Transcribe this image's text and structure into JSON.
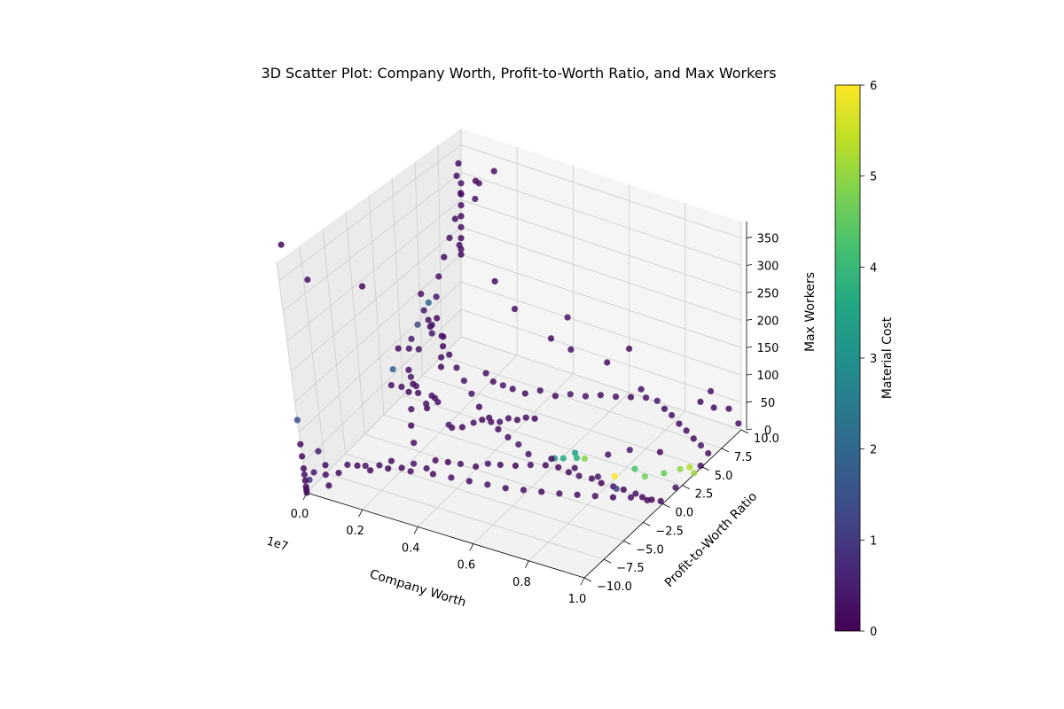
{
  "chart_data": {
    "type": "scatter",
    "projection": "3d",
    "title": "3D Scatter Plot: Company Worth, Profit-to-Worth Ratio, and Max Workers",
    "xlabel": "Company Worth",
    "ylabel": "Profit-to-Worth Ratio",
    "zlabel": "Max Workers",
    "x_offset_text": "1e7",
    "xlim": [
      0,
      10000000
    ],
    "ylim": [
      -10,
      10
    ],
    "zlim": [
      0,
      380
    ],
    "x_ticks": [
      0,
      2000000,
      4000000,
      6000000,
      8000000,
      10000000
    ],
    "x_tick_labels": [
      "0.0",
      "0.2",
      "0.4",
      "0.6",
      "0.8",
      "1.0"
    ],
    "y_ticks": [
      -10,
      -7.5,
      -5,
      -2.5,
      0,
      2.5,
      5,
      7.5,
      10
    ],
    "y_tick_labels": [
      "−10.0",
      "−7.5",
      "−5.0",
      "−2.5",
      "0.0",
      "2.5",
      "5.0",
      "7.5",
      "10.0"
    ],
    "z_ticks": [
      0,
      50,
      100,
      150,
      200,
      250,
      300,
      350
    ],
    "z_tick_labels": [
      "0",
      "50",
      "100",
      "150",
      "200",
      "250",
      "300",
      "350"
    ],
    "colorbar": {
      "label": "Material Cost",
      "min": 0,
      "max": 6,
      "ticks": [
        0,
        1,
        2,
        3,
        4,
        5,
        6
      ],
      "tick_labels": [
        "0",
        "1",
        "2",
        "3",
        "4",
        "5",
        "6"
      ],
      "colormap": "viridis"
    },
    "grid": true,
    "points": [
      [
        0,
        -10,
        80,
        0.2
      ],
      [
        0,
        -10,
        60,
        0.1
      ],
      [
        0,
        -10,
        40,
        0.2
      ],
      [
        0,
        -10,
        30,
        0.3
      ],
      [
        0,
        -10,
        20,
        0.1
      ],
      [
        0,
        -10,
        10,
        0.2
      ],
      [
        0,
        -10,
        5,
        0.1
      ],
      [
        0,
        -10,
        0,
        0.2
      ],
      [
        0,
        -10,
        120,
        1.4
      ],
      [
        0,
        -9.5,
        15,
        1.0
      ],
      [
        200000,
        -9.5,
        30,
        0.4
      ],
      [
        500000,
        -9,
        40,
        0.2
      ],
      [
        400000,
        -8.8,
        20,
        0.3
      ],
      [
        600000,
        -9.2,
        10,
        0.2
      ],
      [
        300000,
        -9,
        60,
        0.5
      ],
      [
        800000,
        -8.5,
        25,
        0.2
      ],
      [
        1000000,
        -8,
        35,
        0.3
      ],
      [
        1200000,
        -7.5,
        30,
        0.2
      ],
      [
        1500000,
        -7,
        20,
        0.1
      ],
      [
        1700000,
        -6.5,
        25,
        0.3
      ],
      [
        2000000,
        -6,
        30,
        0.2
      ],
      [
        2200000,
        -5.5,
        15,
        0.2
      ],
      [
        2500000,
        -5,
        20,
        0.4
      ],
      [
        2800000,
        -4.5,
        10,
        0.3
      ],
      [
        3000000,
        -4,
        20,
        0.2
      ],
      [
        3300000,
        -3.5,
        15,
        0.1
      ],
      [
        3600000,
        -3,
        10,
        0.3
      ],
      [
        4000000,
        -2.5,
        5,
        0.2
      ],
      [
        4300000,
        -2,
        8,
        0.3
      ],
      [
        4600000,
        -1.5,
        4,
        0.2
      ],
      [
        5000000,
        -1,
        2,
        0.1
      ],
      [
        5400000,
        -0.5,
        3,
        0.3
      ],
      [
        5800000,
        0,
        2,
        0.2
      ],
      [
        6200000,
        0.2,
        2,
        0.1
      ],
      [
        6600000,
        0.1,
        1,
        0.2
      ],
      [
        7000000,
        0,
        2,
        0.3
      ],
      [
        7400000,
        0.2,
        1,
        0.2
      ],
      [
        7800000,
        0,
        2,
        0.1
      ],
      [
        8200000,
        0.1,
        1,
        0.4
      ],
      [
        8600000,
        0,
        3,
        0.2
      ],
      [
        9000000,
        0.1,
        1,
        0.3
      ],
      [
        9300000,
        -0.1,
        2,
        0.2
      ],
      [
        9600000,
        0,
        1,
        0.1
      ],
      [
        9900000,
        0.1,
        2,
        0.2
      ],
      [
        8400000,
        -0.2,
        4,
        1.2
      ],
      [
        7600000,
        0.3,
        6,
        0.4
      ],
      [
        6800000,
        0.2,
        10,
        0.3
      ],
      [
        6000000,
        0.1,
        15,
        0.2
      ],
      [
        5200000,
        0,
        12,
        0.3
      ],
      [
        4800000,
        0.2,
        20,
        0.4
      ],
      [
        4400000,
        0.3,
        25,
        0.3
      ],
      [
        4000000,
        0.5,
        30,
        0.2
      ],
      [
        3600000,
        0.8,
        40,
        0.3
      ],
      [
        3200000,
        1,
        50,
        0.2
      ],
      [
        2800000,
        1.5,
        60,
        0.3
      ],
      [
        2400000,
        2,
        70,
        0.4
      ],
      [
        2000000,
        2.5,
        80,
        0.3
      ],
      [
        1600000,
        3,
        90,
        0.2
      ],
      [
        1200000,
        3.5,
        110,
        0.3
      ],
      [
        900000,
        4,
        130,
        0.2
      ],
      [
        600000,
        5,
        150,
        0.4
      ],
      [
        400000,
        6,
        170,
        0.3
      ],
      [
        300000,
        7,
        190,
        0.2
      ],
      [
        200000,
        8,
        210,
        0.3
      ],
      [
        100000,
        9,
        230,
        0.2
      ],
      [
        1000000,
        1,
        40,
        0.2
      ],
      [
        1100000,
        0.5,
        60,
        0.3
      ],
      [
        1300000,
        -0.5,
        80,
        0.2
      ],
      [
        1400000,
        -1,
        100,
        0.4
      ],
      [
        1500000,
        -1.5,
        120,
        0.3
      ],
      [
        1600000,
        -2,
        90,
        0.2
      ],
      [
        1800000,
        -2.5,
        70,
        0.3
      ],
      [
        1900000,
        -3,
        50,
        0.2
      ],
      [
        2100000,
        -3.5,
        30,
        0.3
      ],
      [
        1200000,
        0,
        150,
        0.5
      ],
      [
        1300000,
        0.5,
        170,
        1.3
      ],
      [
        1400000,
        1,
        190,
        0.4
      ],
      [
        1500000,
        1.5,
        160,
        0.3
      ],
      [
        1000000,
        2,
        200,
        0.3
      ],
      [
        1100000,
        2.5,
        180,
        2.0
      ],
      [
        900000,
        3,
        140,
        0.3
      ],
      [
        800000,
        3.5,
        120,
        0.2
      ],
      [
        700000,
        4,
        100,
        0.4
      ],
      [
        1300000,
        -3,
        110,
        0.3
      ],
      [
        1250000,
        -2.5,
        130,
        1.8
      ],
      [
        1350000,
        -2,
        95,
        0.3
      ],
      [
        2600000,
        4,
        60,
        0.3
      ],
      [
        2700000,
        4.5,
        40,
        0.2
      ],
      [
        2900000,
        5,
        30,
        0.4
      ],
      [
        3100000,
        5.5,
        20,
        0.3
      ],
      [
        3400000,
        6,
        10,
        0.2
      ],
      [
        3800000,
        6.5,
        15,
        0.3
      ],
      [
        4200000,
        7,
        5,
        0.2
      ],
      [
        4600000,
        7.5,
        8,
        0.4
      ],
      [
        5000000,
        8,
        4,
        0.3
      ],
      [
        5400000,
        8.5,
        6,
        0.2
      ],
      [
        5800000,
        9,
        3,
        0.3
      ],
      [
        6200000,
        9.5,
        2,
        0.2
      ],
      [
        6600000,
        10,
        1,
        0.3
      ],
      [
        7000000,
        10,
        2,
        0.4
      ],
      [
        7400000,
        9.5,
        1,
        0.2
      ],
      [
        7800000,
        9,
        3,
        0.3
      ],
      [
        8200000,
        8.5,
        1,
        0.2
      ],
      [
        8600000,
        8,
        2,
        0.3
      ],
      [
        9000000,
        7.5,
        1,
        0.2
      ],
      [
        9400000,
        7,
        2,
        0.4
      ],
      [
        9800000,
        6.5,
        1,
        0.3
      ],
      [
        9500000,
        4,
        1,
        5.0
      ],
      [
        9200000,
        3,
        2,
        4.6
      ],
      [
        9700000,
        4.5,
        1,
        5.3
      ],
      [
        8800000,
        2,
        3,
        4.7
      ],
      [
        8000000,
        1,
        4,
        6.0
      ],
      [
        8300000,
        2.5,
        2,
        4.3
      ],
      [
        6500000,
        1.5,
        6,
        3.8
      ],
      [
        6300000,
        2,
        5,
        3.3
      ],
      [
        6700000,
        1.8,
        4,
        4.9
      ],
      [
        6100000,
        1.2,
        3,
        3.6
      ],
      [
        5900000,
        0.8,
        5,
        2.9
      ],
      [
        7200000,
        3,
        3,
        0.3
      ],
      [
        7700000,
        4,
        6,
        0.4
      ],
      [
        8500000,
        5,
        2,
        0.2
      ],
      [
        9900000,
        2,
        1,
        0.3
      ],
      [
        10000000,
        4,
        2,
        5.1
      ],
      [
        9950000,
        5,
        1,
        0.3
      ],
      [
        9600000,
        8,
        60,
        0.2
      ],
      [
        9200000,
        9,
        70,
        0.3
      ],
      [
        9700000,
        9.5,
        40,
        0.2
      ],
      [
        9900000,
        10,
        10,
        0.3
      ],
      [
        8600000,
        9.8,
        30,
        0.2
      ],
      [
        7000000,
        8,
        50,
        0.3
      ],
      [
        5500000,
        9,
        60,
        0.2
      ],
      [
        4500000,
        8,
        80,
        0.3
      ],
      [
        3500000,
        9,
        70,
        0.2
      ],
      [
        3800000,
        10,
        100,
        0.3
      ],
      [
        6000000,
        10,
        80,
        0.2
      ],
      [
        2500000,
        8,
        120,
        0.3
      ],
      [
        1500000,
        9,
        140,
        0.2
      ],
      [
        0,
        10,
        200,
        0.3
      ],
      [
        0,
        10,
        220,
        0.2
      ],
      [
        0,
        10,
        240,
        0.3
      ],
      [
        0,
        10,
        180,
        0.2
      ],
      [
        0,
        10,
        160,
        0.3
      ],
      [
        0,
        10,
        150,
        0.2
      ],
      [
        0,
        10,
        260,
        0.3
      ],
      [
        0,
        10,
        280,
        0.4
      ],
      [
        0,
        9.5,
        300,
        0.3
      ],
      [
        0,
        9.7,
        320,
        0.2
      ],
      [
        0,
        9.8,
        170,
        0.3
      ],
      [
        500000,
        10,
        260,
        0.3
      ],
      [
        300000,
        9,
        280,
        0.2
      ],
      [
        800000,
        9.5,
        300,
        0.3
      ],
      [
        1000000,
        8.5,
        320,
        0.2
      ],
      [
        1500000,
        9,
        340,
        0.3
      ],
      [
        -500000,
        -8,
        380,
        0.1
      ],
      [
        -400000,
        -6,
        300,
        0.3
      ],
      [
        200000,
        -2,
        250,
        0.2
      ],
      [
        2000000,
        -9,
        60,
        0.3
      ],
      [
        2500000,
        -8,
        50,
        0.2
      ],
      [
        3000000,
        -7,
        40,
        0.3
      ],
      [
        3500000,
        -6,
        30,
        0.2
      ],
      [
        4000000,
        -5.5,
        25,
        0.3
      ],
      [
        4500000,
        -5,
        20,
        0.2
      ],
      [
        5000000,
        -4.5,
        15,
        0.3
      ],
      [
        5500000,
        -4,
        10,
        0.2
      ],
      [
        6000000,
        -3.5,
        8,
        0.3
      ],
      [
        6500000,
        -3,
        6,
        0.2
      ],
      [
        7000000,
        -2.5,
        4,
        0.3
      ],
      [
        7500000,
        -2,
        3,
        0.2
      ],
      [
        8000000,
        -1.5,
        2,
        0.3
      ],
      [
        8500000,
        -1,
        1,
        0.2
      ],
      [
        9000000,
        -0.5,
        2,
        0.3
      ],
      [
        9500000,
        -0.2,
        1,
        0.2
      ],
      [
        2200000,
        0.5,
        10,
        0.5
      ],
      [
        2400000,
        0.2,
        12,
        0.3
      ],
      [
        2600000,
        0.8,
        8,
        0.2
      ],
      [
        2900000,
        1.2,
        15,
        0.3
      ],
      [
        3100000,
        1.6,
        18,
        0.2
      ],
      [
        3300000,
        2,
        12,
        0.3
      ],
      [
        3500000,
        2.4,
        10,
        0.4
      ],
      [
        3700000,
        2.8,
        14,
        0.3
      ],
      [
        3900000,
        3.2,
        9,
        0.2
      ],
      [
        4100000,
        3.6,
        11,
        0.3
      ],
      [
        4300000,
        4,
        7,
        0.2
      ],
      [
        1700000,
        1,
        35,
        0.3
      ],
      [
        1750000,
        -0.5,
        45,
        0.2
      ],
      [
        1850000,
        0.2,
        55,
        0.3
      ],
      [
        1950000,
        -1.2,
        65,
        0.4
      ],
      [
        2050000,
        -0.8,
        75,
        0.3
      ],
      [
        1650000,
        1.8,
        85,
        0.2
      ],
      [
        1550000,
        2.2,
        95,
        0.3
      ],
      [
        1450000,
        2.8,
        105,
        0.2
      ],
      [
        1350000,
        3.2,
        115,
        0.3
      ],
      [
        1250000,
        0.6,
        125,
        0.4
      ],
      [
        1150000,
        -0.2,
        135,
        0.3
      ],
      [
        1050000,
        -1.1,
        145,
        0.2
      ]
    ]
  }
}
